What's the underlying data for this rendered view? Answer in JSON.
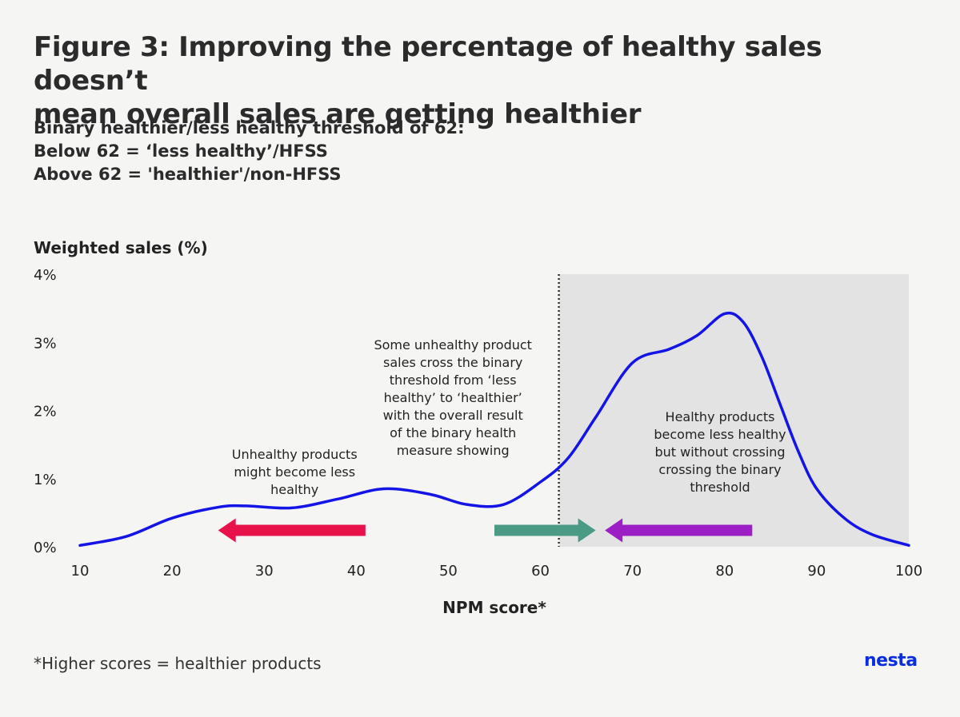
{
  "title_lines": [
    "Figure 3: Improving the percentage of healthy sales doesn’t",
    "mean overall sales are getting healthier"
  ],
  "subtitle_lines": [
    "Binary healthier/less healthy threshold of 62:",
    "Below 62 = ‘less healthy’/HFSS",
    "Above 62 = 'healthier'/non-HFSS"
  ],
  "footnote": "*Higher scores = healthier products",
  "logo": "nesta",
  "chart_data": {
    "type": "line",
    "ylabel": "Weighted sales (%)",
    "xlabel": "NPM score*",
    "xlim": [
      10,
      100
    ],
    "ylim": [
      0,
      4
    ],
    "x_ticks": [
      10,
      20,
      30,
      40,
      50,
      60,
      70,
      80,
      90,
      100
    ],
    "x_tick_labels": [
      "10",
      "20",
      "30",
      "40",
      "50",
      "60",
      "70",
      "80",
      "90",
      "100"
    ],
    "y_ticks": [
      0,
      1,
      2,
      3,
      4
    ],
    "y_tick_labels": [
      "0%",
      "1%",
      "2%",
      "3%",
      "4%"
    ],
    "grid": false,
    "threshold": 62,
    "shaded_region": [
      62,
      100
    ],
    "series": [
      {
        "color": "#1414e6",
        "x": [
          10,
          15,
          20,
          25,
          28,
          33,
          38,
          43,
          48,
          52,
          56,
          60,
          63,
          66,
          70,
          74,
          77,
          80,
          82,
          84,
          86,
          88,
          90,
          93,
          96,
          100
        ],
        "y": [
          0.02,
          0.15,
          0.42,
          0.58,
          0.6,
          0.57,
          0.7,
          0.85,
          0.77,
          0.62,
          0.62,
          0.95,
          1.3,
          1.9,
          2.7,
          2.9,
          3.1,
          3.42,
          3.3,
          2.8,
          2.1,
          1.4,
          0.85,
          0.42,
          0.18,
          0.02
        ]
      }
    ],
    "annotations": [
      {
        "text_lines": [
          "Unhealthy products",
          "might become less",
          "healthy"
        ],
        "anchor_x": 33.3,
        "anchor_y": 1.29,
        "arrow": {
          "from": 41,
          "to": 25,
          "y": 0.24,
          "color": "#e8124a"
        }
      },
      {
        "text_lines": [
          "Some unhealthy product",
          "sales cross the binary",
          "threshold from ‘less",
          "healthy’ to ‘healthier’",
          "with the overall result",
          "of the binary health",
          "measure showing"
        ],
        "anchor_x": 50.5,
        "anchor_y": 2.9,
        "arrow": {
          "from": 55,
          "to": 66,
          "y": 0.24,
          "color": "#4a9a85"
        }
      },
      {
        "text_lines": [
          "Healthy products",
          "become less healthy",
          "but without crossing",
          "crossing the binary",
          "threshold"
        ],
        "anchor_x": 79.5,
        "anchor_y": 1.84,
        "arrow": {
          "from": 83,
          "to": 67,
          "y": 0.24,
          "color": "#9b1fc4"
        }
      }
    ]
  },
  "colors": {
    "background": "#f5f6f4",
    "shade": "#e2e3e2",
    "line": "#1414e6",
    "logo": "#0a2de0"
  }
}
